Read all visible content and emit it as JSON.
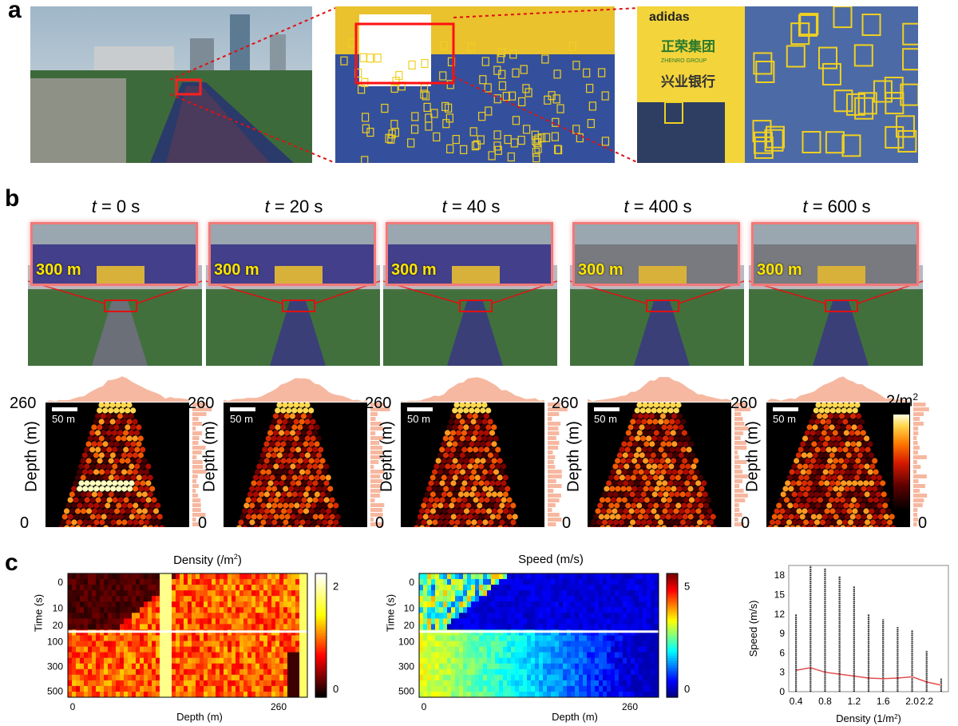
{
  "panels": {
    "a": {
      "letter": "a",
      "zoom_texts": [
        "adidas",
        "正荣集团",
        "ZHENRO GROUP",
        "兴业银行"
      ]
    },
    "b": {
      "letter": "b",
      "frames": [
        {
          "t_var": "t",
          "t_eq": " = 0 s"
        },
        {
          "t_var": "t",
          "t_eq": " = 20 s"
        },
        {
          "t_var": "t",
          "t_eq": " = 40 s"
        },
        {
          "t_var": "t",
          "t_eq": " = 400 s"
        },
        {
          "t_var": "t",
          "t_eq": " = 600 s"
        }
      ],
      "distance_label": "300 m",
      "scale_label": "50 m",
      "y_axis_label": "Depth (m)",
      "y_top": "260",
      "y_bottom": "0",
      "colorbar_top": "2/m",
      "colorbar_top_sup": "2",
      "colorbar_bottom": "0"
    },
    "c": {
      "letter": "c",
      "density_title": "Density (/m",
      "density_title_sup": "2",
      "density_title_end": ")",
      "speed_title": "Speed (m/s)",
      "time_label": "Time (s)",
      "depth_label": "Depth (m)",
      "time_ticks": [
        "0",
        "10",
        "20",
        "100",
        "300",
        "500"
      ],
      "depth_ticks": [
        "0",
        "260"
      ],
      "density_cbar_ticks": [
        "2",
        "0"
      ],
      "speed_cbar_ticks": [
        "5",
        "0"
      ]
    }
  },
  "chart_data": {
    "type": "scatter",
    "title": "",
    "xlabel": "Density (1/m",
    "xlabel_sup": "2",
    "xlabel_end": ")",
    "ylabel": "Speed (m/s)",
    "xlim": [
      0.3,
      2.5
    ],
    "ylim": [
      0,
      19.5
    ],
    "x_ticks": [
      0.4,
      0.8,
      1.2,
      1.6,
      2.0,
      2.2
    ],
    "x_tick_labels": [
      "0.4",
      "0.8",
      "1.2",
      "1.6",
      "2.0",
      "2.2"
    ],
    "y_ticks": [
      0,
      3,
      6,
      9,
      12,
      15,
      18
    ],
    "y_tick_labels": [
      "0",
      "3",
      "6",
      "9",
      "12",
      "15",
      "18"
    ],
    "columns": [
      {
        "x": 0.4,
        "max": 12.0
      },
      {
        "x": 0.6,
        "max": 19.5
      },
      {
        "x": 0.8,
        "max": 19.0
      },
      {
        "x": 1.0,
        "max": 17.8
      },
      {
        "x": 1.2,
        "max": 16.3
      },
      {
        "x": 1.4,
        "max": 12.0
      },
      {
        "x": 1.6,
        "max": 11.2
      },
      {
        "x": 1.8,
        "max": 10.0
      },
      {
        "x": 2.0,
        "max": 9.5
      },
      {
        "x": 2.2,
        "max": 6.3
      },
      {
        "x": 2.4,
        "max": 2.0
      }
    ],
    "series": [
      {
        "type": "line",
        "color": "#e05050",
        "x": [
          0.4,
          0.6,
          0.8,
          1.0,
          1.2,
          1.4,
          1.6,
          1.8,
          2.0,
          2.2,
          2.4
        ],
        "y": [
          3.3,
          3.7,
          3.0,
          2.7,
          2.4,
          2.1,
          2.0,
          2.1,
          2.3,
          1.5,
          1.0
        ]
      }
    ],
    "colors": {
      "points": "#111111",
      "mean_line": "#e05050"
    }
  }
}
